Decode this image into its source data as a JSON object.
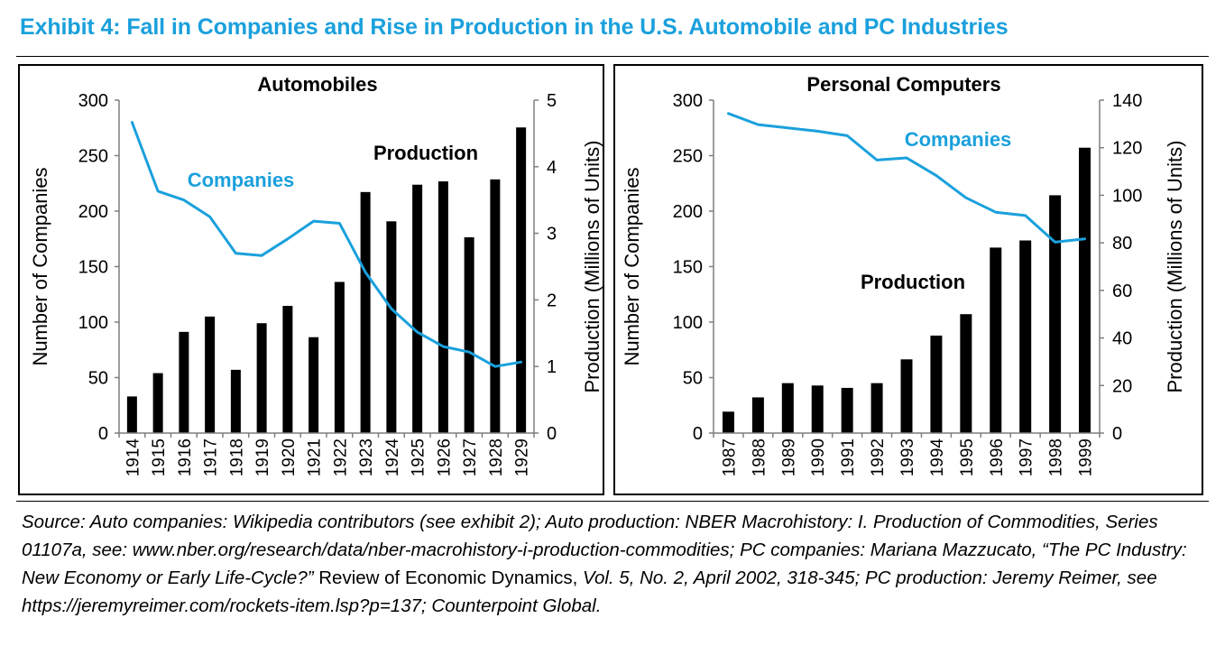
{
  "exhibit_title": "Exhibit 4: Fall in Companies and Rise in Production in the U.S. Automobile and PC Industries",
  "colors": {
    "title": "#1aa0dc",
    "companies_line": "#1aa0dc",
    "production_bars": "#000000"
  },
  "source": {
    "part1": "Source: Auto companies: Wikipedia contributors (see exhibit 2); Auto production: NBER Macrohistory: I. Production of Commodities, Series 01107a, see: www.nber.org/research/data/nber-macrohistory-i-production-commodities; PC companies: Mariana Mazzucato, “The PC Industry: New Economy or Early Life-Cycle?”",
    "part2": " Review of Economic Dynamics, ",
    "part3": "Vol. 5, No. 2, April 2002, 318-345; PC production: Jeremy Reimer, see https://jeremyreimer.com/rockets-item.lsp?p=137; Counterpoint Global."
  },
  "chart_data": [
    {
      "id": "auto",
      "type": "bar+line",
      "title": "Automobiles",
      "categories": [
        "1914",
        "1915",
        "1916",
        "1917",
        "1918",
        "1919",
        "1920",
        "1921",
        "1922",
        "1923",
        "1924",
        "1925",
        "1926",
        "1927",
        "1928",
        "1929"
      ],
      "series": [
        {
          "name": "Production",
          "type": "bar",
          "axis": "right",
          "values": [
            0.55,
            0.9,
            1.52,
            1.75,
            0.95,
            1.65,
            1.91,
            1.44,
            2.27,
            3.62,
            3.18,
            3.73,
            3.78,
            2.94,
            3.81,
            4.59
          ]
        },
        {
          "name": "Companies",
          "type": "line",
          "axis": "left",
          "values": [
            280,
            218,
            210,
            195,
            162,
            160,
            175,
            191,
            189,
            145,
            112,
            91,
            78,
            73,
            60,
            64
          ]
        }
      ],
      "ylabel": "Number of Companies",
      "y2label": "Production (Millions of Units)",
      "ylim": [
        0,
        300
      ],
      "yticks": [
        0,
        50,
        100,
        150,
        200,
        250,
        300
      ],
      "y2lim": [
        0,
        5
      ],
      "y2ticks": [
        0,
        1,
        2,
        3,
        4,
        5
      ],
      "labels": {
        "production": "Production",
        "companies": "Companies"
      },
      "grid": false
    },
    {
      "id": "pc",
      "type": "bar+line",
      "title": "Personal Computers",
      "categories": [
        "1987",
        "1988",
        "1989",
        "1990",
        "1991",
        "1992",
        "1993",
        "1994",
        "1995",
        "1996",
        "1997",
        "1998",
        "1999"
      ],
      "series": [
        {
          "name": "Production",
          "type": "bar",
          "axis": "right",
          "values": [
            9,
            15,
            21,
            20,
            19,
            21,
            31,
            41,
            50,
            78,
            81,
            100,
            120
          ]
        },
        {
          "name": "Companies",
          "type": "line",
          "axis": "left",
          "values": [
            288,
            278,
            275,
            272,
            268,
            246,
            248,
            232,
            212,
            199,
            196,
            172,
            175
          ]
        }
      ],
      "ylabel": "Number of Companies",
      "y2label": "Production (Millions of Units)",
      "ylim": [
        0,
        300
      ],
      "yticks": [
        0,
        50,
        100,
        150,
        200,
        250,
        300
      ],
      "y2lim": [
        0,
        140
      ],
      "y2ticks": [
        0,
        20,
        40,
        60,
        80,
        100,
        120,
        140
      ],
      "labels": {
        "production": "Production",
        "companies": "Companies"
      },
      "grid": false
    }
  ]
}
